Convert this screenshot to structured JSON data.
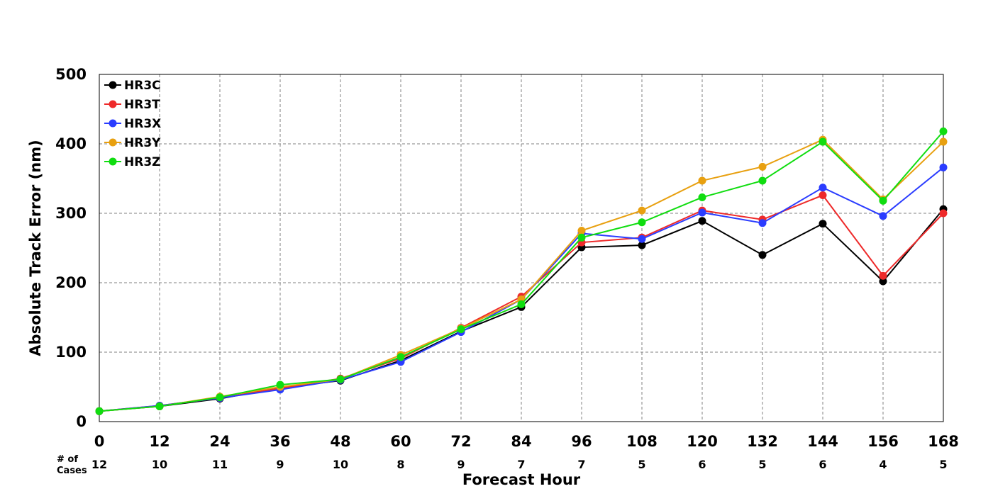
{
  "chart_data": {
    "type": "line",
    "xlabel": "Forecast Hour",
    "ylabel": "Absolute Track Error (nm)",
    "x": [
      0,
      12,
      24,
      36,
      48,
      60,
      72,
      84,
      96,
      108,
      120,
      132,
      144,
      156,
      168
    ],
    "xlim": [
      0,
      168
    ],
    "ylim": [
      0,
      500
    ],
    "yticks": [
      0,
      100,
      200,
      300,
      400,
      500
    ],
    "grid": true,
    "legend_position": "top-left",
    "cases_label": "# of\nCases",
    "cases": [
      12,
      10,
      11,
      9,
      10,
      8,
      9,
      7,
      7,
      5,
      6,
      5,
      6,
      4,
      5
    ],
    "series": [
      {
        "name": "HR3C",
        "color": "#000000",
        "values": [
          15,
          22,
          33,
          49,
          59,
          88,
          130,
          165,
          251,
          254,
          289,
          240,
          285,
          202,
          306
        ]
      },
      {
        "name": "HR3T",
        "color": "#ee2a2a",
        "values": [
          15,
          23,
          34,
          48,
          62,
          91,
          135,
          180,
          258,
          265,
          304,
          291,
          326,
          210,
          300
        ]
      },
      {
        "name": "HR3X",
        "color": "#2a3cff",
        "values": [
          15,
          23,
          34,
          46,
          60,
          86,
          129,
          176,
          271,
          263,
          301,
          286,
          337,
          296,
          366
        ]
      },
      {
        "name": "HR3Y",
        "color": "#e8a010",
        "values": [
          15,
          22,
          36,
          50,
          61,
          96,
          134,
          176,
          275,
          304,
          347,
          367,
          406,
          320,
          403
        ]
      },
      {
        "name": "HR3Z",
        "color": "#10dd10",
        "values": [
          15,
          22,
          35,
          53,
          61,
          93,
          133,
          169,
          265,
          287,
          323,
          347,
          403,
          318,
          418
        ]
      }
    ]
  }
}
